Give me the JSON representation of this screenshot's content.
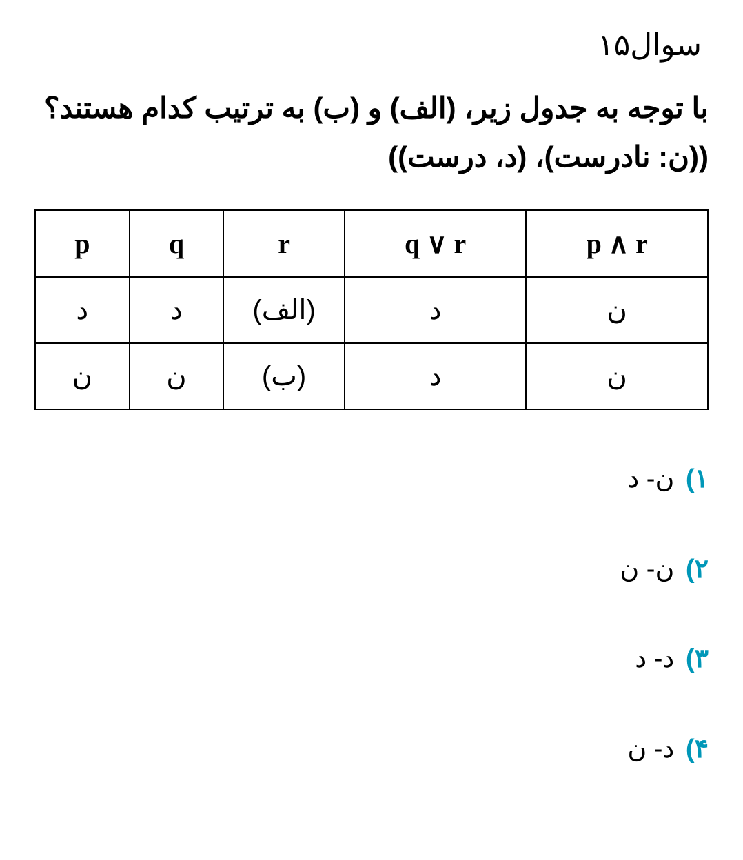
{
  "question_number": "سوال۱۵",
  "question_body": "با توجه به جدول زیر، (الف) و (ب) به ترتیب کدام هستند؟ ((ن: نادرست)، (د، درست))",
  "table": {
    "columns": [
      "p",
      "q",
      "r",
      "q ∨ r",
      "p ∧ r"
    ],
    "col_widths_class": [
      "col-narrow",
      "col-narrow",
      "col-mid",
      "col-wide",
      "col-wide"
    ],
    "rows": [
      [
        "د",
        "د",
        "(الف)",
        "د",
        "ن"
      ],
      [
        "ن",
        "ن",
        "(ب)",
        "د",
        "ن"
      ]
    ],
    "border_color": "#000000",
    "header_fontsize": 40,
    "cell_fontsize": 40
  },
  "options": [
    {
      "num": "۱)",
      "text": "ن- د"
    },
    {
      "num": "۲)",
      "text": "ن- ن"
    },
    {
      "num": "۳)",
      "text": "د- د"
    },
    {
      "num": "۴)",
      "text": "د- ن"
    }
  ],
  "colors": {
    "option_number": "#0097b8",
    "text": "#000000",
    "background": "#ffffff"
  }
}
